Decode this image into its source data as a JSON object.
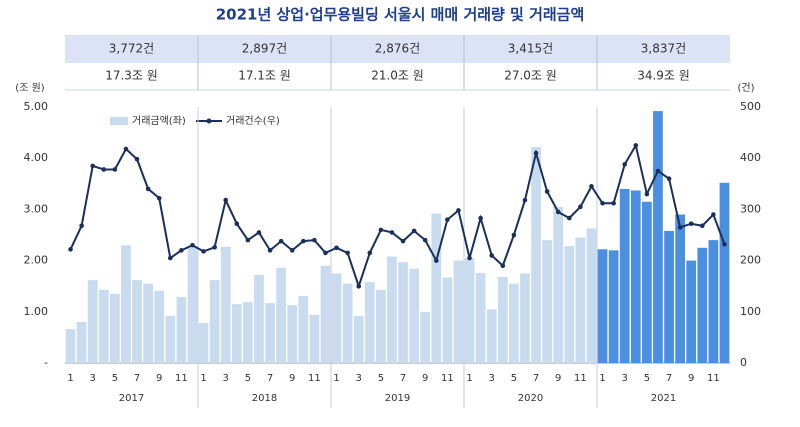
{
  "chart_data": {
    "type": "bar-line",
    "title": "2021년 상업·업무용빌딩 서울시 매매 거래량 및 거래금액",
    "summary": {
      "counts": [
        "3,772건",
        "2,897건",
        "2,876건",
        "3,415건",
        "3,837건"
      ],
      "amounts": [
        "17.3조 원",
        "17.1조 원",
        "21.0조 원",
        "27.0조 원",
        "34.9조 원"
      ]
    },
    "year_labels": [
      "2017",
      "2018",
      "2019",
      "2020",
      "2021"
    ],
    "categories": [
      "1",
      null,
      "3",
      null,
      "5",
      null,
      "7",
      null,
      "9",
      null,
      "11",
      null,
      "1",
      null,
      "3",
      null,
      "5",
      null,
      "7",
      null,
      "9",
      null,
      "11",
      null,
      "1",
      null,
      "3",
      null,
      "5",
      null,
      "7",
      null,
      "9",
      null,
      "11",
      null,
      "1",
      null,
      "3",
      null,
      "5",
      null,
      "7",
      null,
      "9",
      null,
      "11",
      null,
      "1",
      null,
      "3",
      null,
      "5",
      null,
      "7",
      null,
      "9",
      null,
      "11",
      null
    ],
    "y_label": "(조 원)",
    "y2_label": "(건)",
    "series": [
      {
        "name": "거래금액(좌)",
        "color": "#c9dcef",
        "bar_colors": [
          "#c9dcef",
          "#c9dcef",
          "#c9dcef",
          "#c9dcef",
          "#c9dcef",
          "#c9dcef",
          "#c9dcef",
          "#c9dcef",
          "#c9dcef",
          "#c9dcef",
          "#c9dcef",
          "#c9dcef",
          "#c9dcef",
          "#c9dcef",
          "#c9dcef",
          "#c9dcef",
          "#c9dcef",
          "#c9dcef",
          "#c9dcef",
          "#c9dcef",
          "#c9dcef",
          "#c9dcef",
          "#c9dcef",
          "#c9dcef",
          "#c9dcef",
          "#c9dcef",
          "#c9dcef",
          "#c9dcef",
          "#c9dcef",
          "#c9dcef",
          "#c9dcef",
          "#c9dcef",
          "#c9dcef",
          "#c9dcef",
          "#c9dcef",
          "#c9dcef",
          "#c9dcef",
          "#c9dcef",
          "#c9dcef",
          "#c9dcef",
          "#c9dcef",
          "#c9dcef",
          "#c9dcef",
          "#c9dcef",
          "#c9dcef",
          "#c9dcef",
          "#c9dcef",
          "#c9dcef",
          "#4a8fe0",
          "#4a8fe0",
          "#4a8fe0",
          "#4a8fe0",
          "#4a8fe0",
          "#4a8fe0",
          "#4a8fe0",
          "#4a8fe0",
          "#4a8fe0",
          "#4a8fe0",
          "#4a8fe0",
          "#4a8fe0"
        ],
        "values": [
          0.66,
          0.8,
          1.62,
          1.43,
          1.35,
          2.3,
          1.62,
          1.55,
          1.41,
          0.92,
          1.29,
          2.25,
          0.78,
          1.62,
          2.27,
          1.15,
          1.19,
          1.72,
          1.17,
          1.86,
          1.13,
          1.31,
          0.94,
          1.9,
          1.75,
          1.55,
          0.92,
          1.58,
          1.43,
          2.08,
          1.97,
          1.84,
          1.0,
          2.92,
          1.67,
          2.0,
          2.05,
          1.76,
          1.05,
          1.68,
          1.55,
          1.75,
          4.22,
          2.4,
          3.05,
          2.28,
          2.45,
          2.63,
          2.22,
          2.2,
          3.4,
          3.37,
          3.15,
          4.92,
          2.58,
          2.9,
          2.0,
          2.25,
          2.4,
          3.52
        ]
      },
      {
        "name": "거래건수(우)",
        "color": "#1a2f5a",
        "axis": "y2",
        "values": [
          222,
          268,
          385,
          378,
          378,
          418,
          398,
          340,
          322,
          205,
          220,
          230,
          218,
          226,
          318,
          272,
          240,
          255,
          220,
          238,
          220,
          238,
          240,
          215,
          225,
          215,
          150,
          215,
          260,
          255,
          238,
          258,
          240,
          200,
          280,
          298,
          205,
          283,
          210,
          190,
          250,
          318,
          410,
          335,
          295,
          283,
          305,
          345,
          312,
          312,
          388,
          425,
          330,
          375,
          360,
          265,
          272,
          268,
          290,
          232
        ]
      }
    ],
    "ylim": [
      0,
      5
    ],
    "yticks": [
      {
        "value": 0,
        "label": "-"
      },
      {
        "value": 1,
        "label": "1.00"
      },
      {
        "value": 2,
        "label": "2.00"
      },
      {
        "value": 3,
        "label": "3.00"
      },
      {
        "value": 4,
        "label": "4.00"
      },
      {
        "value": 5,
        "label": "5.00"
      }
    ],
    "y2lim": [
      0,
      500
    ],
    "y2ticks": [
      0,
      100,
      200,
      300,
      400,
      500
    ]
  }
}
